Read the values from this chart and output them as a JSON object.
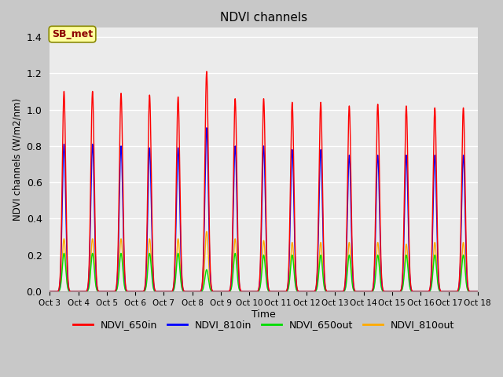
{
  "title": "NDVI channels",
  "xlabel": "Time",
  "ylabel": "NDVI channels (W/m2/nm)",
  "ylim": [
    0,
    1.45
  ],
  "background_color": "#e8e8e8",
  "plot_bg_color": "#ebebeb",
  "fig_bg_color": "#c8c8c8",
  "annotation_text": "SB_met",
  "annotation_bg": "#ffffa0",
  "annotation_border": "#8B0000",
  "tick_labels": [
    "Oct 3",
    "Oct 4",
    "Oct 5",
    "Oct 6",
    "Oct 7",
    "Oct 8",
    "Oct 9",
    "Oct 10",
    "Oct 11",
    "Oct 12",
    "Oct 13",
    "Oct 14",
    "Oct 15",
    "Oct 16",
    "Oct 17",
    "Oct 18"
  ],
  "colors": {
    "NDVI_650in": "#ff0000",
    "NDVI_810in": "#0000ff",
    "NDVI_650out": "#00dd00",
    "NDVI_810out": "#ffaa00"
  },
  "peaks": {
    "NDVI_650in": [
      1.1,
      1.1,
      1.09,
      1.08,
      1.07,
      1.21,
      1.06,
      1.06,
      1.04,
      1.04,
      1.02,
      1.03,
      1.02,
      1.01,
      1.01
    ],
    "NDVI_810in": [
      0.81,
      0.81,
      0.8,
      0.79,
      0.79,
      0.9,
      0.8,
      0.8,
      0.78,
      0.78,
      0.75,
      0.75,
      0.75,
      0.75,
      0.75
    ],
    "NDVI_650out": [
      0.21,
      0.21,
      0.21,
      0.21,
      0.21,
      0.12,
      0.21,
      0.2,
      0.2,
      0.2,
      0.2,
      0.2,
      0.2,
      0.2,
      0.2
    ],
    "NDVI_810out": [
      0.29,
      0.29,
      0.29,
      0.29,
      0.29,
      0.33,
      0.29,
      0.28,
      0.27,
      0.27,
      0.27,
      0.27,
      0.26,
      0.27,
      0.27
    ]
  },
  "peak_offsets": [
    0.5,
    1.5,
    2.5,
    3.5,
    4.5,
    5.5,
    6.5,
    7.5,
    8.5,
    9.5,
    10.5,
    11.5,
    12.5,
    13.5,
    14.5
  ],
  "gridlines_y": [
    0.0,
    0.2,
    0.4,
    0.6,
    0.8,
    1.0,
    1.2,
    1.4
  ],
  "legend": [
    {
      "label": "NDVI_650in",
      "color": "#ff0000"
    },
    {
      "label": "NDVI_810in",
      "color": "#0000ff"
    },
    {
      "label": "NDVI_650out",
      "color": "#00dd00"
    },
    {
      "label": "NDVI_810out",
      "color": "#ffaa00"
    }
  ]
}
